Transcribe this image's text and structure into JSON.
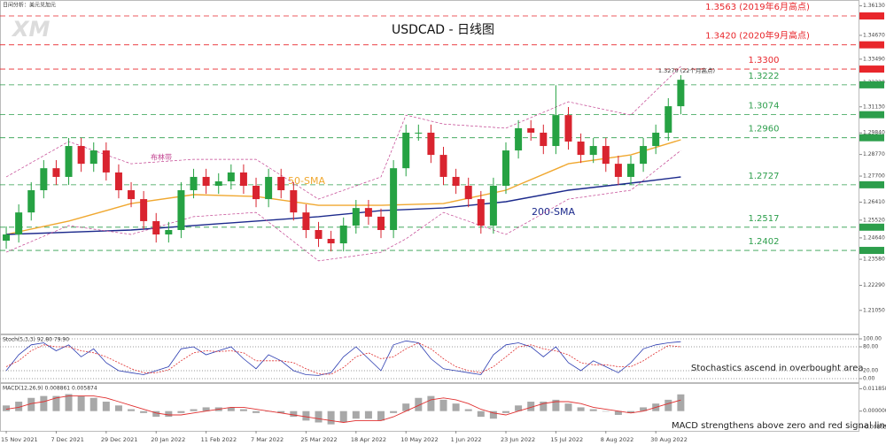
{
  "chart_data": [
    {
      "type": "candlestick",
      "title": "USDCAD - 日线图",
      "subtitle": "日间分析：美元兑加元",
      "logo": "XM",
      "open": [
        1.245,
        1.2481,
        1.259,
        1.27,
        1.2809,
        1.2766,
        1.2919,
        1.2831,
        1.2897,
        1.2788,
        1.27,
        1.2656,
        1.2547,
        1.2481,
        1.2503,
        1.27,
        1.2766,
        1.2722,
        1.2744,
        1.2788,
        1.2722,
        1.2656,
        1.2766,
        1.27,
        1.259,
        1.2503,
        1.2459,
        1.2437,
        1.2525,
        1.2612,
        1.2569,
        1.2503,
        1.2809,
        1.2985,
        1.2985,
        1.2875,
        1.2766,
        1.2722,
        1.2656,
        1.2525,
        1.2722,
        1.2897,
        1.3007,
        1.2985,
        1.2919,
        1.3072,
        1.2941,
        1.2875,
        1.2919,
        1.2831,
        1.2766,
        1.2831,
        1.2919,
        1.2985,
        1.3116
      ],
      "high": [
        1.2521,
        1.263,
        1.274,
        1.2849,
        1.2849,
        1.2959,
        1.2959,
        1.2937,
        1.2937,
        1.2828,
        1.274,
        1.2696,
        1.2587,
        1.2543,
        1.274,
        1.2806,
        1.2806,
        1.2784,
        1.2828,
        1.2828,
        1.2762,
        1.2806,
        1.2806,
        1.274,
        1.263,
        1.2543,
        1.2499,
        1.2565,
        1.2652,
        1.2652,
        1.2609,
        1.2849,
        1.3025,
        1.3025,
        1.3025,
        1.2915,
        1.2806,
        1.2762,
        1.2696,
        1.2762,
        1.2937,
        1.3047,
        1.3047,
        1.3025,
        1.322,
        1.3112,
        1.2981,
        1.2959,
        1.2959,
        1.2871,
        1.2871,
        1.2959,
        1.3025,
        1.3156,
        1.327
      ],
      "low": [
        1.241,
        1.2441,
        1.255,
        1.266,
        1.2726,
        1.2726,
        1.2791,
        1.2791,
        1.2748,
        1.266,
        1.2616,
        1.2507,
        1.2441,
        1.2441,
        1.2463,
        1.266,
        1.2682,
        1.2682,
        1.2704,
        1.2682,
        1.2616,
        1.2616,
        1.266,
        1.255,
        1.2463,
        1.2419,
        1.2397,
        1.2397,
        1.2485,
        1.2529,
        1.2463,
        1.2463,
        1.2769,
        1.2945,
        1.2835,
        1.2726,
        1.2682,
        1.2616,
        1.2485,
        1.2485,
        1.2682,
        1.2857,
        1.2945,
        1.2879,
        1.2879,
        1.2901,
        1.2835,
        1.2835,
        1.2791,
        1.2726,
        1.2726,
        1.2791,
        1.2879,
        1.2945,
        1.3076
      ],
      "close": [
        1.2481,
        1.259,
        1.27,
        1.2809,
        1.2766,
        1.2919,
        1.2831,
        1.2897,
        1.2788,
        1.27,
        1.2656,
        1.2547,
        1.2481,
        1.2503,
        1.27,
        1.2766,
        1.2722,
        1.2744,
        1.2788,
        1.2722,
        1.2656,
        1.2766,
        1.27,
        1.259,
        1.2503,
        1.2459,
        1.2437,
        1.2525,
        1.2612,
        1.2569,
        1.2503,
        1.2809,
        1.2985,
        1.2985,
        1.2875,
        1.2766,
        1.2722,
        1.2656,
        1.2525,
        1.2722,
        1.2897,
        1.3007,
        1.2985,
        1.2919,
        1.3072,
        1.2941,
        1.2875,
        1.2919,
        1.2831,
        1.2766,
        1.2831,
        1.2919,
        1.2985,
        1.3116,
        1.3247
      ],
      "up_color": "#26a243",
      "down_color": "#d9242f",
      "xlim": [
        -0.5,
        68.3
      ],
      "ylim": [
        1.1986,
        1.3642
      ],
      "yticks": [
        {
          "value": 1.3613,
          "label": "1.36130"
        },
        {
          "value": 1.3467,
          "label": "1.34670"
        },
        {
          "value": 1.3349,
          "label": "1.33490"
        },
        {
          "value": 1.3232,
          "label": "1.32320"
        },
        {
          "value": 1.3113,
          "label": "1.31130"
        },
        {
          "value": 1.2984,
          "label": "1.29840"
        },
        {
          "value": 1.2877,
          "label": "1.28770"
        },
        {
          "value": 1.277,
          "label": "1.27700"
        },
        {
          "value": 1.2641,
          "label": "1.26410"
        },
        {
          "value": 1.2552,
          "label": "1.25520"
        },
        {
          "value": 1.2464,
          "label": "1.24640"
        },
        {
          "value": 1.2358,
          "label": "1.23580"
        },
        {
          "value": 1.2229,
          "label": "1.22290"
        },
        {
          "value": 1.2105,
          "label": "1.21050"
        }
      ],
      "xticks": [
        {
          "value": 0,
          "label": "15 Nov 2021"
        },
        {
          "value": 4,
          "label": "7 Dec 2021"
        },
        {
          "value": 8,
          "label": "29 Dec 2021"
        },
        {
          "value": 12,
          "label": "20 Jan 2022"
        },
        {
          "value": 16,
          "label": "11 Feb 2022"
        },
        {
          "value": 20,
          "label": "7 Mar 2022"
        },
        {
          "value": 24,
          "label": "25 Mar 2022"
        },
        {
          "value": 28,
          "label": "18 Apr 2022"
        },
        {
          "value": 32,
          "label": "10 May 2022"
        },
        {
          "value": 36,
          "label": "1 Jun 2022"
        },
        {
          "value": 40,
          "label": "23 Jun 2022"
        },
        {
          "value": 44,
          "label": "15 Jul 2022"
        },
        {
          "value": 48,
          "label": "8 Aug 2022"
        },
        {
          "value": 52,
          "label": "30 Aug 2022"
        }
      ],
      "levels": [
        {
          "value": 1.3563,
          "label": "1.3563 (2019年6月高点)",
          "color": "#e8262b"
        },
        {
          "value": 1.342,
          "label": "1.3420 (2020年9月高点)",
          "color": "#e8262b"
        },
        {
          "value": 1.33,
          "label": "1.3300",
          "color": "#e8262b"
        },
        {
          "value": 1.3222,
          "label": "1.3222",
          "color": "#2c9e4b"
        },
        {
          "value": 1.3074,
          "label": "1.3074",
          "color": "#2c9e4b"
        },
        {
          "value": 1.296,
          "label": "1.2960",
          "color": "#2c9e4b"
        },
        {
          "value": 1.2727,
          "label": "1.2727",
          "color": "#2c9e4b"
        },
        {
          "value": 1.2517,
          "label": "1.2517",
          "color": "#2c9e4b"
        },
        {
          "value": 1.2402,
          "label": "1.2402",
          "color": "#2c9e4b"
        }
      ],
      "overlays": [
        {
          "name": "50-SMA",
          "color": "#f0a830",
          "x": [
            0,
            5,
            10,
            15,
            20,
            25,
            30,
            35,
            40,
            45,
            50,
            54
          ],
          "values": [
            1.2481,
            1.2547,
            1.2634,
            1.2678,
            1.2669,
            1.2625,
            1.2625,
            1.2634,
            1.27,
            1.2831,
            1.2875,
            1.295
          ]
        },
        {
          "name": "200-SMA",
          "color": "#1c2a8c",
          "x": [
            0,
            10,
            20,
            25,
            30,
            35,
            40,
            45,
            50,
            54
          ],
          "values": [
            1.2481,
            1.2503,
            1.2547,
            1.2569,
            1.2599,
            1.2612,
            1.2643,
            1.27,
            1.2735,
            1.2766
          ]
        },
        {
          "name": "布林带",
          "color": "#c2408f",
          "x": [
            0,
            5,
            10,
            15,
            20,
            25,
            30,
            32,
            35,
            40,
            45,
            50,
            54
          ],
          "upper": [
            1.2766,
            1.2941,
            1.2831,
            1.2853,
            1.2853,
            1.2656,
            1.2766,
            1.3072,
            1.3028,
            1.3007,
            1.3138,
            1.3072,
            1.3313
          ],
          "lower": [
            1.2393,
            1.2525,
            1.2481,
            1.2569,
            1.259,
            1.235,
            1.2393,
            1.2459,
            1.259,
            1.2481,
            1.2656,
            1.27,
            1.2897
          ]
        }
      ],
      "annotation": {
        "text": "1.3270 (22个月高点)",
        "value": 1.327
      }
    },
    {
      "type": "line",
      "label": "Stoch(5,3,3) 92.80 79.90",
      "annotation": "Stochastics ascend in overbought area",
      "ylim": [
        0,
        100
      ],
      "yticks": [
        {
          "value": 100,
          "label": "100.00"
        },
        {
          "value": 80,
          "label": "80.00"
        },
        {
          "value": 20,
          "label": "20.00"
        },
        {
          "value": 0,
          "label": "0.00"
        }
      ],
      "series": [
        {
          "color": "#2a3bb0",
          "values": [
            20,
            60,
            85,
            90,
            70,
            85,
            55,
            75,
            40,
            20,
            15,
            10,
            20,
            30,
            75,
            80,
            60,
            70,
            80,
            50,
            25,
            60,
            45,
            20,
            10,
            8,
            15,
            55,
            80,
            50,
            20,
            85,
            95,
            90,
            50,
            25,
            20,
            15,
            10,
            60,
            85,
            90,
            80,
            55,
            80,
            40,
            20,
            45,
            30,
            15,
            40,
            75,
            85,
            90,
            92.8
          ]
        },
        {
          "color": "#e03030",
          "values": [
            30,
            45,
            70,
            85,
            80,
            80,
            70,
            65,
            55,
            40,
            25,
            15,
            15,
            22,
            45,
            65,
            70,
            68,
            70,
            65,
            45,
            45,
            45,
            40,
            25,
            12,
            11,
            28,
            55,
            65,
            50,
            55,
            75,
            90,
            75,
            50,
            30,
            20,
            15,
            30,
            55,
            80,
            85,
            75,
            70,
            60,
            40,
            35,
            35,
            30,
            30,
            45,
            65,
            83,
            79.9
          ]
        }
      ]
    },
    {
      "type": "macd",
      "label": "MACD(12,26,9) 0.008861 0.005874",
      "annotation": "MACD strengthens above zero and red signal line",
      "ylim": [
        -0.0095,
        0.0125
      ],
      "yticks": [
        {
          "value": 0.011858,
          "label": "0.011858"
        },
        {
          "value": 0,
          "label": "0.000000"
        },
        {
          "value": -0.008651,
          "label": "-0.008651"
        }
      ],
      "color": "#a8a8a8",
      "values": [
        0.003,
        0.005,
        0.007,
        0.008,
        0.008,
        0.009,
        0.008,
        0.007,
        0.005,
        0.003,
        0.001,
        -0.001,
        -0.003,
        -0.003,
        -0.001,
        0.001,
        0.002,
        0.002,
        0.002,
        0.001,
        -0.001,
        0.0,
        -0.001,
        -0.003,
        -0.005,
        -0.006,
        -0.007,
        -0.006,
        -0.004,
        -0.004,
        -0.005,
        -0.001,
        0.004,
        0.007,
        0.008,
        0.006,
        0.004,
        0.001,
        -0.003,
        -0.004,
        -0.001,
        0.003,
        0.005,
        0.005,
        0.006,
        0.004,
        0.002,
        0.001,
        0.0,
        -0.002,
        -0.001,
        0.002,
        0.004,
        0.006,
        0.008861
      ],
      "signal": {
        "color": "#e03030",
        "values": [
          0.001,
          0.002,
          0.004,
          0.005,
          0.007,
          0.008,
          0.008,
          0.008,
          0.007,
          0.005,
          0.003,
          0.001,
          -0.001,
          -0.002,
          -0.002,
          -0.001,
          0.0,
          0.001,
          0.002,
          0.002,
          0.001,
          0.0,
          -0.001,
          -0.002,
          -0.003,
          -0.004,
          -0.005,
          -0.006,
          -0.005,
          -0.005,
          -0.005,
          -0.003,
          0.0,
          0.003,
          0.006,
          0.007,
          0.006,
          0.004,
          0.001,
          -0.001,
          -0.002,
          0.0,
          0.002,
          0.004,
          0.005,
          0.005,
          0.004,
          0.002,
          0.001,
          0.0,
          -0.001,
          0.0,
          0.002,
          0.004,
          0.005874
        ]
      }
    }
  ]
}
